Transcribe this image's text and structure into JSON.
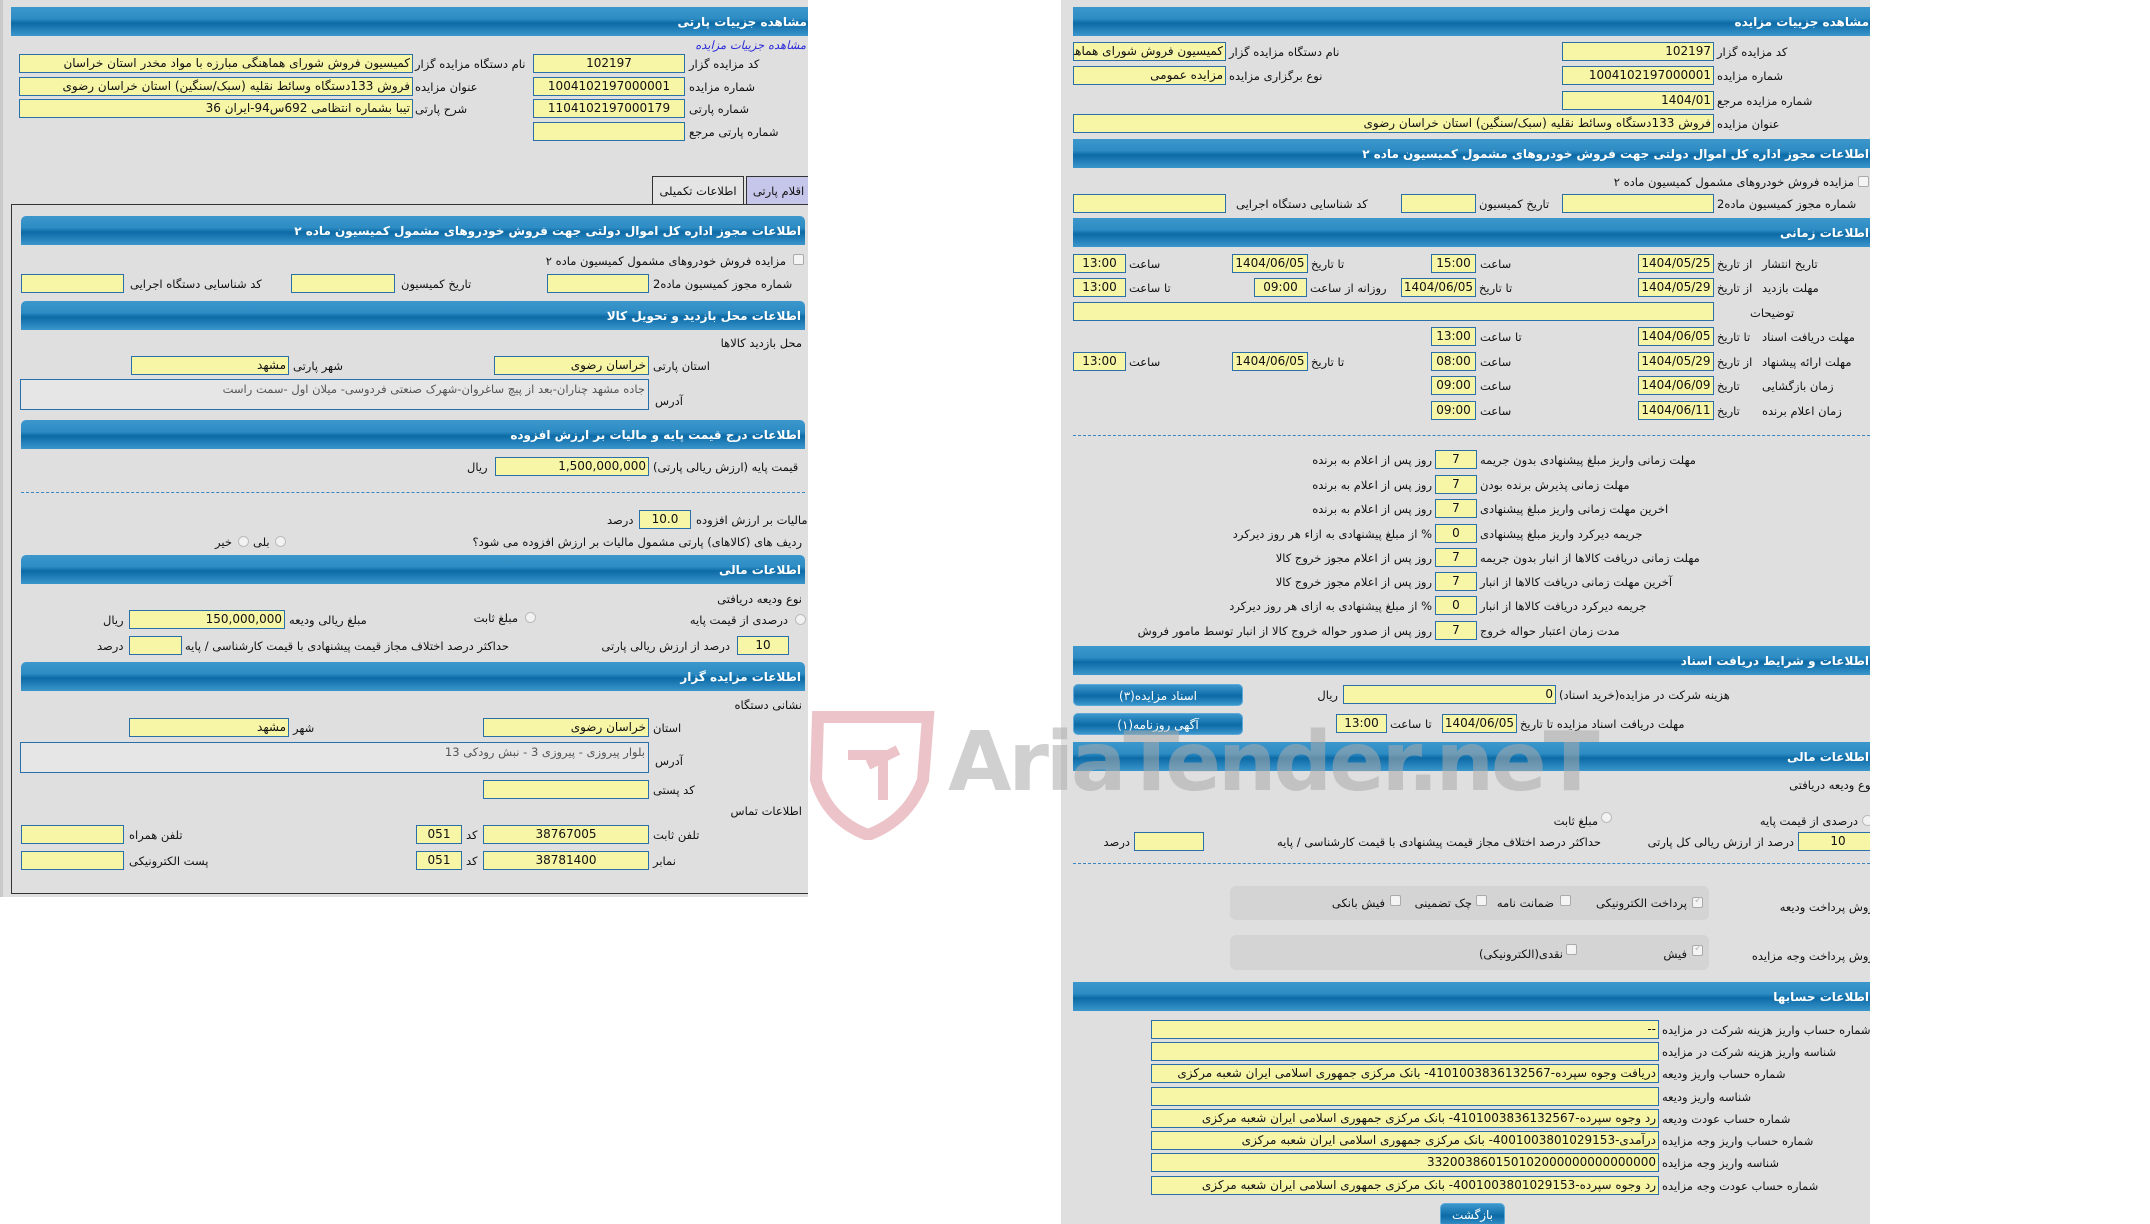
{
  "party": {
    "header": "مشاهده جزییات پارتی",
    "link": "مشاهده جزییات مزایده",
    "fields": {
      "auctioneer_code_label": "کد مزایده گزار",
      "auctioneer_code": "102197",
      "auction_no_label": "شماره مزایده",
      "auction_no": "1004102197000001",
      "party_no_label": "شماره پارتی",
      "party_no": "1104102197000179",
      "ref_party_no_label": "شماره پارتی مرجع",
      "ref_party_no": "",
      "org_name_label": "نام دستگاه مزایده گزار",
      "org_name": "کمیسیون فروش شورای هماهنگی مبارزه با مواد مخدر استان خراسان",
      "title_label": "عنوان مزایده",
      "title": "فروش 133دستگاه وسائط نقلیه (سبک/سنگین) استان خراسان رضوی",
      "desc_label": "شرح پارتی",
      "desc": "تیبا بشماره انتظامی 692س94-ایران 36"
    },
    "tabs": [
      {
        "label": "اقلام پارتی"
      },
      {
        "label": "اطلاعات تکمیلی"
      }
    ],
    "license": {
      "header": "اطلاعات مجوز اداره کل اموال دولتی جهت فروش خودروهای مشمول کمیسیون ماده ۲",
      "checkbox": "مزایده فروش خودروهای مشمول کمیسیون ماده ۲",
      "permit_label": "شماره مجوز کمیسیون ماده2",
      "permit": "",
      "date_label": "تاریخ کمیسیون",
      "date": "",
      "exec_label": "کد شناسایی دستگاه اجرایی",
      "exec": ""
    },
    "visit": {
      "header": "اطلاعات محل بازدید و تحویل کالا",
      "subtitle": "محل بازدید کالاها",
      "province_label": "استان پارتی",
      "province": "خراسان رضوی",
      "city_label": "شهر پارتی",
      "city": "مشهد",
      "address_label": "آدرس",
      "address": "جاده مشهد چناران-بعد از پیچ ساغروان-شهرک صنعتی فردوسی- میلان اول -سمت راست"
    },
    "price": {
      "header": "اطلاعات درج قیمت پایه و مالیات بر ارزش افزوده",
      "base_label": "قیمت پایه (ارزش ریالی پارتی)",
      "base": "1,500,000,000",
      "rial": "ریال",
      "vat_label": "مالیات بر ارزش افزوده",
      "vat": "10.0",
      "percent": "درصد",
      "question": "ردیف های (کالاهای) پارتی مشمول مالیات بر ارزش افزوده می شود؟",
      "yes": "بلی",
      "no": "خیر"
    },
    "finance": {
      "header": "اطلاعات مالی",
      "deposit_type": "نوع ودیعه دریافتی",
      "pct_option": "درصدی از قیمت پایه",
      "fixed_option": "مبلغ ثابت",
      "deposit_amount_label": "مبلغ ریالی ودیعه",
      "deposit_amount": "150,000,000",
      "rial": "ریال",
      "pct_value": "10",
      "pct_label": "درصد از ارزش ریالی پارتی",
      "max_diff_label": "حداکثر درصد اختلاف مجاز قیمت پیشنهادی با قیمت کارشناسی / پایه",
      "max_diff": "",
      "percent": "درصد"
    },
    "auctioneer": {
      "header": "اطلاعات مزایده گزار",
      "address_title": "نشانی دستگاه",
      "province_label": "استان",
      "province": "خراسان رضوی",
      "city_label": "شهر",
      "city": "مشهد",
      "address_label": "آدرس",
      "address": "بلوار پیروزی - پیروزی 3 - نبش رودکی 13",
      "postal_label": "کد پستی",
      "postal": "",
      "contact_title": "اطلاعات تماس",
      "phone_label": "تلفن ثابت",
      "phone": "38767005",
      "code_label": "کد",
      "phone_code": "051",
      "mobile_label": "تلفن همراه",
      "mobile": "",
      "fax_label": "نمابر",
      "fax": "38781400",
      "fax_code": "051",
      "email_label": "پست الکترونیکی",
      "email": ""
    }
  },
  "auction": {
    "header": "مشاهده جزییات مزایده",
    "fields": {
      "code_label": "کد مزایده گزار",
      "code": "102197",
      "org_label": "نام دستگاه مزایده گزار",
      "org": "کمیسیون فروش شورای هماهنگی مبارزه با مواد مخدر استان خراسان",
      "no_label": "شماره مزایده",
      "no": "1004102197000001",
      "type_label": "نوع برگزاری مزایده",
      "type": "مزایده عمومی",
      "ref_label": "شماره مزایده مرجع",
      "ref": "1404/01",
      "title_label": "عنوان مزایده",
      "title": "فروش 133دستگاه وسائط نقلیه (سبک/سنگین) استان خراسان رضوی"
    },
    "license": {
      "header": "اطلاعات مجوز اداره کل اموال دولتی جهت فروش خودروهای مشمول کمیسیون ماده ۲",
      "checkbox": "مزایده فروش خودروهای مشمول کمیسیون ماده ۲",
      "permit_label": "شماره مجوز کمیسیون ماده2",
      "date_label": "تاریخ کمیسیون",
      "exec_label": "کد شناسایی دستگاه اجرایی"
    },
    "time": {
      "header": "اطلاعات زمانی",
      "publish": {
        "label": "تاریخ انتشار",
        "from": "از تاریخ",
        "from_date": "1404/05/25",
        "time_label": "ساعت",
        "time": "15:00",
        "to": "تا تاریخ",
        "to_date": "1404/06/05",
        "to_time_label": "ساعت",
        "to_time": "13:00"
      },
      "visit": {
        "label": "مهلت بازدید",
        "from": "از تاریخ",
        "from_date": "1404/05/29",
        "to": "تا تاریخ",
        "to_date": "1404/06/05",
        "daily_label": "روزانه از ساعت",
        "daily": "09:00",
        "to_time_label": "تا ساعت",
        "to_time": "13:00"
      },
      "notes_label": "توضیحات",
      "notes": "",
      "docs": {
        "label": "مهلت دریافت اسناد",
        "to": "تا تاریخ",
        "date": "1404/06/05",
        "time_label": "تا ساعت",
        "time": "13:00"
      },
      "offer": {
        "label": "مهلت ارائه پیشنهاد",
        "from": "از تاریخ",
        "from_date": "1404/05/29",
        "time_label": "ساعت",
        "time": "08:00",
        "to": "تا تاریخ",
        "to_date": "1404/06/05",
        "to_time_label": "ساعت",
        "to_time": "13:00"
      },
      "opening": {
        "label": "زمان بازگشایی",
        "date_label": "تاریخ",
        "date": "1404/06/09",
        "time_label": "ساعت",
        "time": "09:00"
      },
      "winner": {
        "label": "زمان اعلام برنده",
        "date_label": "تاریخ",
        "date": "1404/06/11",
        "time_label": "ساعت",
        "time": "09:00"
      }
    },
    "penalties": [
      {
        "label": "مهلت زمانی واریز مبلغ پیشنهادی بدون جریمه",
        "value": "7",
        "suffix": "روز پس از اعلام به برنده"
      },
      {
        "label": "مهلت زمانی پذیرش برنده بودن",
        "value": "7",
        "suffix": "روز پس از اعلام به برنده"
      },
      {
        "label": "اخرین مهلت زمانی واریز مبلغ پیشنهادی",
        "value": "7",
        "suffix": "روز پس از اعلام به برنده"
      },
      {
        "label": "جریمه دیرکرد واریز مبلغ پیشنهادی",
        "value": "0",
        "suffix": "% از مبلغ پیشنهادی به ازاء هر روز دیرکرد"
      },
      {
        "label": "مهلت زمانی دریافت کالاها از انبار بدون جریمه",
        "value": "7",
        "suffix": "روز پس از اعلام مجوز خروج کالا"
      },
      {
        "label": "آخرین مهلت زمانی دریافت کالاها از انبار",
        "value": "7",
        "suffix": "روز پس از اعلام مجوز خروج کالا"
      },
      {
        "label": "جریمه دیرکرد دریافت کالاها از انبار",
        "value": "0",
        "suffix": "% از مبلغ پیشنهادی به ازای هر روز دیرکرد"
      },
      {
        "label": "مدت زمان اعتبار حواله خروج",
        "value": "7",
        "suffix": "روز پس از صدور حواله خروج کالا از انبار توسط مامور فروش"
      }
    ],
    "docs": {
      "header": "اطلاعات و شرایط دریافت اسناد",
      "docs_button": "اسناد مزایده(۳)",
      "ad_button": "آگهی روزنامه(۱)",
      "fee_label": "هزینه شرکت در مزایده(خرید اسناد)",
      "fee": "0",
      "rial": "ریال",
      "deadline_label": "مهلت دریافت اسناد مزایده تا تاریخ",
      "deadline": "1404/06/05",
      "time_label": "تا ساعت",
      "time": "13:00"
    },
    "finance": {
      "header": "اطلاعات مالی",
      "deposit_type": "نوع ودیعه دریافتی",
      "pct_option": "درصدی از قیمت پایه",
      "fixed_option": "مبلغ ثابت",
      "pct_value": "10",
      "pct_label": "درصد از ارزش ریالی کل پارتی",
      "max_diff_label": "حداکثر درصد اختلاف مجاز قیمت پیشنهادی با قیمت کارشناسی / پایه",
      "max_diff": "",
      "percent": "درصد",
      "deposit_method_label": "روش پرداخت ودیعه",
      "deposit_methods": [
        {
          "label": "پرداخت الکترونیکی",
          "checked": true
        },
        {
          "label": "ضمانت نامه",
          "checked": false
        },
        {
          "label": "چک تضمینی",
          "checked": false
        },
        {
          "label": "فیش بانکی",
          "checked": false
        }
      ],
      "payment_method_label": "روش پرداخت وجه مزایده",
      "payment_methods": [
        {
          "label": "فیش",
          "checked": true
        },
        {
          "label": "نقدی(الکترونیکی)",
          "checked": false
        }
      ]
    },
    "accounts": {
      "header": "اطلاعات حسابها",
      "rows": [
        {
          "label": "شماره حساب واریز هزینه شرکت در مزایده",
          "value": "--"
        },
        {
          "label": "شناسه واریز هزینه شرکت در مزایده",
          "value": ""
        },
        {
          "label": "شماره حساب واریز ودیعه",
          "value": "دریافت وجوه سپرده-4101003836132567- بانک مرکزی جمهوری اسلامی ایران شعبه مرکزی"
        },
        {
          "label": "شناسه واریز ودیعه",
          "value": ""
        },
        {
          "label": "شماره حساب عودت ودیعه",
          "value": "رد وجوه سپرده-4101003836132567- بانک مرکزی جمهوری اسلامی ایران شعبه مرکزی"
        },
        {
          "label": "شماره حساب واریز وجه مزایده",
          "value": "درآمدی-4001003801029153- بانک مرکزی جمهوری اسلامی ایران شعبه مرکزی"
        },
        {
          "label": "شناسه واریز وجه مزایده",
          "value": "332003860150102000000000000000"
        },
        {
          "label": "شماره حساب عودت وجه مزایده",
          "value": "رد وجوه سپرده-4001003801029153- بانک مرکزی جمهوری اسلامی ایران شعبه مرکزی"
        }
      ]
    },
    "back_button": "بازگشت"
  },
  "watermark": "AriaTender.neT",
  "colors": {
    "header_blue": "#0c6aa6",
    "input_yellow": "#f7f5a6",
    "panel_gray": "#e0dfe0",
    "watermark_pink": "#e6b4ba"
  }
}
